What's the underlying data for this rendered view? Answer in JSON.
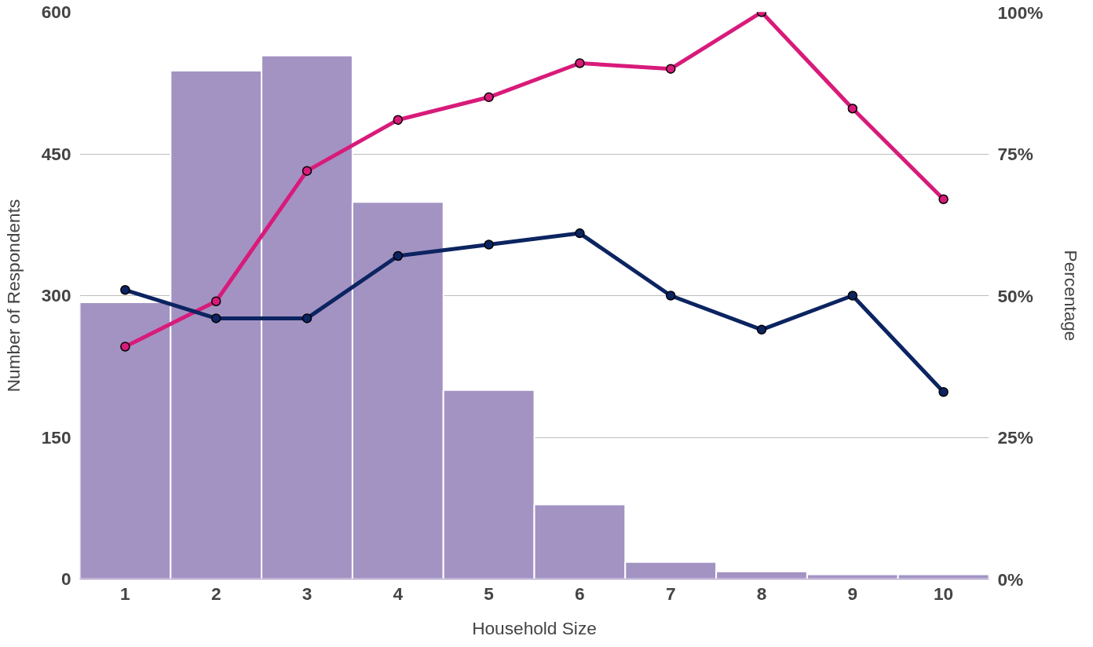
{
  "chart_data": {
    "type": "bar",
    "xlabel": "Household Size",
    "ylabel": "Number of Respondents",
    "y2label": "Percentage",
    "categories": [
      "1",
      "2",
      "3",
      "4",
      "5",
      "6",
      "7",
      "8",
      "9",
      "10"
    ],
    "series": [
      {
        "color": "#a393c3",
        "values": [
          293,
          538,
          554,
          399,
          200,
          79,
          18,
          8,
          5,
          5
        ]
      },
      {
        "type": "line",
        "axis": "y2",
        "color": "#d81b7a",
        "values": [
          41,
          49,
          72,
          81,
          85,
          91,
          90,
          100,
          83,
          67
        ]
      },
      {
        "type": "line",
        "axis": "y2",
        "color": "#0c2461",
        "values": [
          51,
          46,
          46,
          57,
          59,
          61,
          50,
          44,
          50,
          33
        ]
      }
    ],
    "ylim": [
      0,
      600
    ],
    "yticks": [
      0,
      150,
      300,
      450,
      600
    ],
    "y2lim": [
      0,
      100
    ],
    "y2ticks": [
      {
        "value": 0,
        "label": "0%"
      },
      {
        "value": 25,
        "label": "25%"
      },
      {
        "value": 50,
        "label": "50%"
      },
      {
        "value": 75,
        "label": "75%"
      },
      {
        "value": 100,
        "label": "100%"
      }
    ],
    "grid": "y",
    "marker": "circle",
    "line_style": "solid"
  }
}
